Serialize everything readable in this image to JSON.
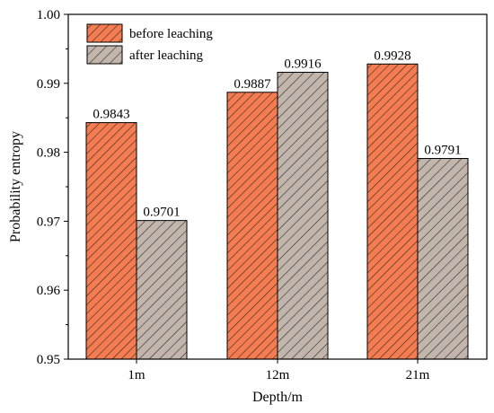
{
  "chart_data": {
    "type": "bar",
    "title": "",
    "xlabel": "Depth/m",
    "ylabel": "Probability entropy",
    "categories": [
      "1m",
      "12m",
      "21m"
    ],
    "ylim": [
      0.95,
      1.0
    ],
    "yticks": [
      0.95,
      0.96,
      0.97,
      0.98,
      0.99,
      1.0
    ],
    "ytick_labels": [
      "0.95",
      "0.96",
      "0.97",
      "0.98",
      "0.99",
      "1.00"
    ],
    "series": [
      {
        "name": "before leaching",
        "values": [
          0.9843,
          0.9887,
          0.9928
        ],
        "labels": [
          "0.9843",
          "0.9887",
          "0.9928"
        ],
        "color": "#f47c50",
        "hatch": "dense diagonal"
      },
      {
        "name": "after leaching",
        "values": [
          0.9701,
          0.9916,
          0.9791
        ],
        "labels": [
          "0.9701",
          "0.9916",
          "0.9791"
        ],
        "color": "#c2b5ab",
        "hatch": "sparse diagonal"
      }
    ],
    "legend_position": "top-left",
    "grid": false
  }
}
